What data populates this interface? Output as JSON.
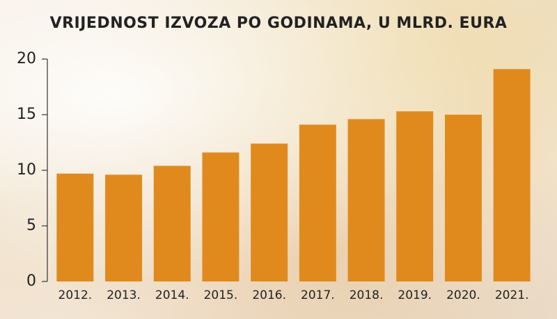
{
  "chart_data": {
    "type": "bar",
    "title": "VRIJEDNOST IZVOZA PO GODINAMA, U MLRD. EURA",
    "categories": [
      "2012.",
      "2013.",
      "2014.",
      "2015.",
      "2016.",
      "2017.",
      "2018.",
      "2019.",
      "2020.",
      "2021."
    ],
    "values": [
      9.7,
      9.6,
      10.4,
      11.6,
      12.4,
      14.1,
      14.6,
      15.3,
      15.0,
      19.1
    ],
    "color": "#e08a1e",
    "ylim": [
      0,
      20
    ],
    "yticks": [
      0,
      5,
      10,
      15,
      20
    ],
    "grid": false
  }
}
